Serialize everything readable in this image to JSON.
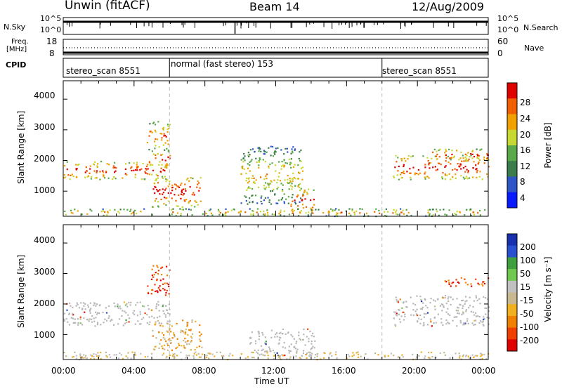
{
  "header": {
    "station": "Unwin (fitACF)",
    "beam": "Beam 14",
    "date": "12/Aug/2009"
  },
  "top_panels": {
    "nsky_label": "N.Sky",
    "nsearch_label": "N.Search",
    "freq_label_line1": "Freq.",
    "freq_label_line2": "[MHz]",
    "nave_label": "Nave",
    "cpid_label": "CPID",
    "left_ticks_noise": [
      "10^5",
      "10^0"
    ],
    "right_ticks_noise": [
      "10^5",
      "10^0"
    ],
    "left_ticks_freq": [
      "18",
      "8"
    ],
    "right_ticks_nave": [
      "60",
      "0"
    ]
  },
  "cpid_segments": [
    {
      "label": "stereo_scan 8551",
      "start_hour": 0
    },
    {
      "label": "normal (fast stereo) 153",
      "start_hour": 6
    },
    {
      "label": "stereo_scan 8551",
      "start_hour": 18
    }
  ],
  "colors": {
    "power_scale": [
      "#0a1aff",
      "#3055c8",
      "#3a7d4a",
      "#5aa84a",
      "#c8d832",
      "#f0a000",
      "#f06000",
      "#e00000"
    ],
    "velocity_scale": [
      "#1830b0",
      "#2850d0",
      "#40a040",
      "#70c850",
      "#c0c0c0",
      "#c8b890",
      "#f0b020",
      "#f08000",
      "#f04000",
      "#e00000"
    ],
    "ground_scatter": "#b8b8b8"
  },
  "chart_data": [
    {
      "type": "heatmap",
      "name": "power",
      "xlabel": "",
      "ylabel": "Slant Range [km]",
      "xlim": [
        0,
        24
      ],
      "ylim": [
        180,
        4600
      ],
      "y_ticks": [
        "1000",
        "2000",
        "3000",
        "4000"
      ],
      "x_ticks": [
        "00:00",
        "04:00",
        "08:00",
        "12:00",
        "16:00",
        "20:00",
        "00:00"
      ],
      "colorbar_label": "Power [dB]",
      "colorbar_ticks": [
        "4",
        "8",
        "12",
        "16",
        "20",
        "24",
        "28"
      ],
      "colorbar_range": [
        0,
        30
      ],
      "scatter_regions": [
        {
          "t0": 0.0,
          "t1": 5.9,
          "r0": 1400,
          "r1": 2000,
          "intensity": 0.55
        },
        {
          "t0": 4.8,
          "t1": 6.0,
          "r0": 1800,
          "r1": 2300,
          "intensity": 0.6
        },
        {
          "t0": 4.7,
          "t1": 6.0,
          "r0": 2300,
          "r1": 3300,
          "intensity": 0.35
        },
        {
          "t0": 5.0,
          "t1": 7.8,
          "r0": 500,
          "r1": 1500,
          "intensity": 0.65
        },
        {
          "t0": 10.0,
          "t1": 13.5,
          "r0": 600,
          "r1": 2500,
          "intensity": 0.15
        },
        {
          "t0": 12.8,
          "t1": 14.2,
          "r0": 300,
          "r1": 1100,
          "intensity": 0.6
        },
        {
          "t0": 18.6,
          "t1": 24.0,
          "r0": 1400,
          "r1": 2200,
          "intensity": 0.6
        },
        {
          "t0": 20.8,
          "t1": 24.0,
          "r0": 2000,
          "r1": 2400,
          "intensity": 0.5
        },
        {
          "t0": 0.0,
          "t1": 24.0,
          "r0": 200,
          "r1": 450,
          "intensity": 0.25
        }
      ]
    },
    {
      "type": "heatmap",
      "name": "velocity",
      "xlabel": "Time UT",
      "ylabel": "Slant Range [km]",
      "xlim": [
        0,
        24
      ],
      "ylim": [
        180,
        4600
      ],
      "y_ticks": [
        "1000",
        "2000",
        "3000",
        "4000"
      ],
      "x_ticks": [
        "00:00",
        "04:00",
        "08:00",
        "12:00",
        "16:00",
        "20:00",
        "00:00"
      ],
      "colorbar_label": "Velocity [m s⁻¹]",
      "colorbar_ticks": [
        "200",
        "100",
        "50",
        "15",
        "-15",
        "-50",
        "-100",
        "-200"
      ],
      "colorbar_range": [
        -250,
        250
      ],
      "scatter_regions": [
        {
          "t0": 0.0,
          "t1": 6.0,
          "r0": 1300,
          "r1": 2100,
          "velocity": 0
        },
        {
          "t0": 4.7,
          "t1": 6.0,
          "r0": 2300,
          "r1": 3300,
          "velocity": -120
        },
        {
          "t0": 5.0,
          "t1": 7.8,
          "r0": 500,
          "r1": 1500,
          "velocity": -60
        },
        {
          "t0": 10.5,
          "t1": 14.2,
          "r0": 300,
          "r1": 1200,
          "velocity": 0
        },
        {
          "t0": 18.6,
          "t1": 24.0,
          "r0": 1300,
          "r1": 2300,
          "velocity": 0
        },
        {
          "t0": 21.5,
          "t1": 24.0,
          "r0": 2600,
          "r1": 2900,
          "velocity": -180
        },
        {
          "t0": 0.0,
          "t1": 24.0,
          "r0": 200,
          "r1": 450,
          "velocity": -40
        }
      ]
    }
  ]
}
